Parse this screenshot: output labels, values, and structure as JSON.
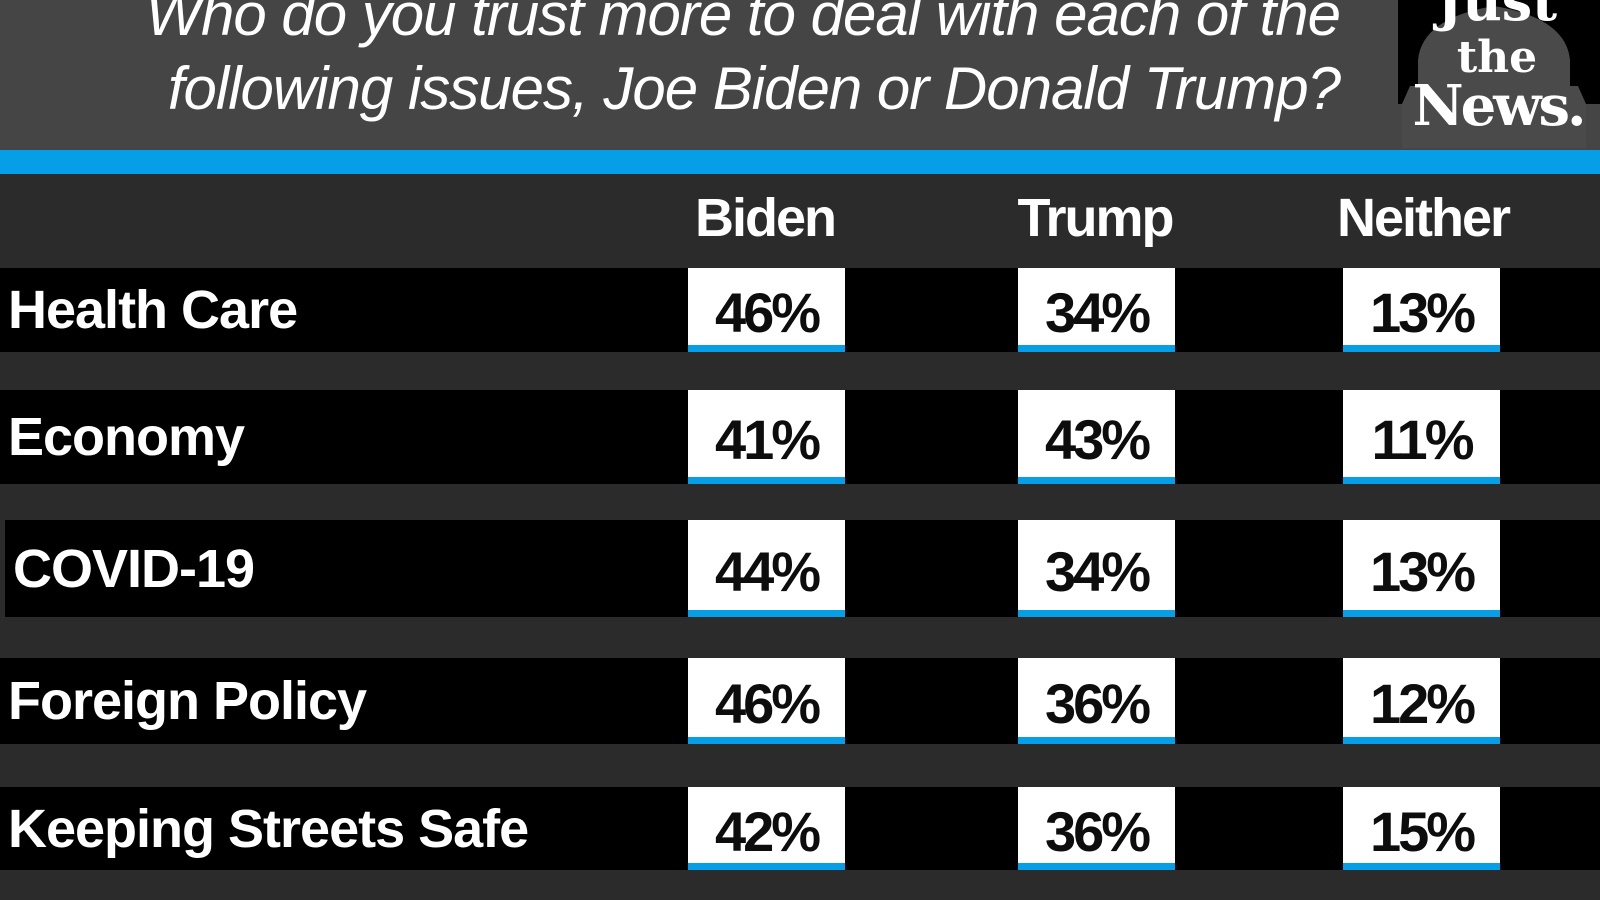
{
  "header": {
    "title_line1": "Who do you trust more to deal with each of the",
    "title_line2": "following issues, Joe Biden or Donald Trump?",
    "logo": {
      "line1": "Just",
      "line2": "the",
      "line3": "News.",
      "icon": "capitol-dome-icon"
    }
  },
  "colors": {
    "header_bg": "#454545",
    "accent_blue": "#069ee6",
    "table_bg": "#2b2b2b",
    "row_bg": "#000000",
    "cell_bg": "#ffffff"
  },
  "chart_data": {
    "type": "table",
    "title": "Who do you trust more to deal with each of the following issues, Joe Biden or Donald Trump?",
    "columns": [
      "Biden",
      "Trump",
      "Neither"
    ],
    "unit": "%",
    "rows": [
      {
        "issue": "Health Care",
        "values": [
          46,
          34,
          13
        ],
        "labels": [
          "46%",
          "34%",
          "13%"
        ]
      },
      {
        "issue": "Economy",
        "values": [
          41,
          43,
          11
        ],
        "labels": [
          "41%",
          "43%",
          "11%"
        ]
      },
      {
        "issue": "COVID-19",
        "values": [
          44,
          34,
          13
        ],
        "labels": [
          "44%",
          "34%",
          "13%"
        ]
      },
      {
        "issue": "Foreign Policy",
        "values": [
          46,
          36,
          12
        ],
        "labels": [
          "46%",
          "36%",
          "12%"
        ]
      },
      {
        "issue": "Keeping Streets Safe",
        "values": [
          42,
          36,
          15
        ],
        "labels": [
          "42%",
          "36%",
          "15%"
        ]
      }
    ]
  }
}
